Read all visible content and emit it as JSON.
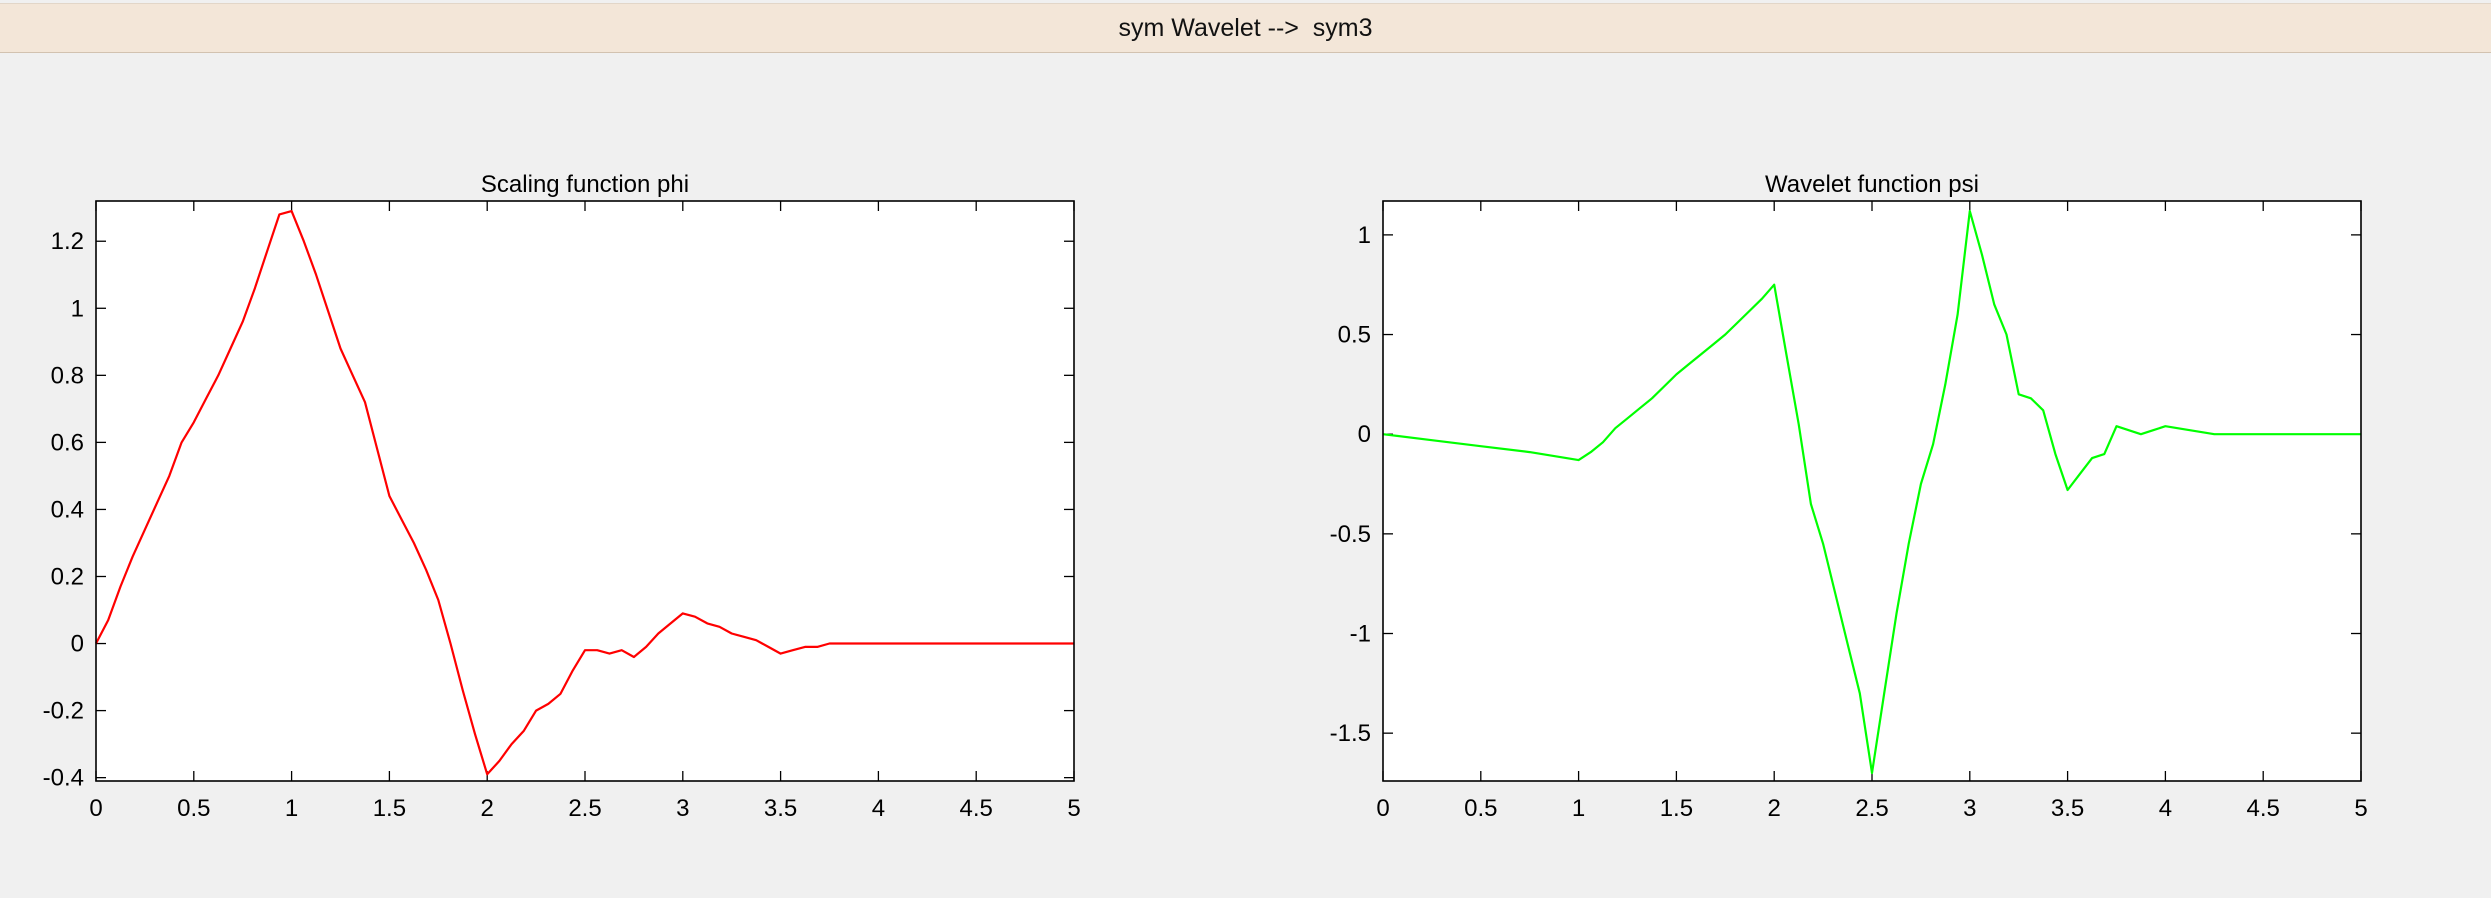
{
  "window": {
    "title": "sym Wavelet -->  sym3"
  },
  "colors": {
    "background": "#f0f0f0",
    "titlebar": "#f3e6d8",
    "phi_line": "#ff0000",
    "psi_line": "#00ff00"
  },
  "chart_data": [
    {
      "type": "line",
      "title": "Scaling function phi",
      "xlabel": "",
      "ylabel": "",
      "xlim": [
        0,
        5
      ],
      "ylim": [
        -0.41,
        1.32
      ],
      "xticks": [
        0,
        0.5,
        1,
        1.5,
        2,
        2.5,
        3,
        3.5,
        4,
        4.5,
        5
      ],
      "xtick_labels": [
        "0",
        "0.5",
        "1",
        "1.5",
        "2",
        "2.5",
        "3",
        "3.5",
        "4",
        "4.5",
        "5"
      ],
      "yticks": [
        -0.4,
        -0.2,
        0,
        0.2,
        0.4,
        0.6,
        0.8,
        1,
        1.2
      ],
      "ytick_labels": [
        "-0.4",
        "-0.2",
        "0",
        "0.2",
        "0.4",
        "0.6",
        "0.8",
        "1",
        "1.2"
      ],
      "grid": false,
      "series": [
        {
          "color": "#ff0000",
          "x": [
            0,
            0.0625,
            0.125,
            0.1875,
            0.25,
            0.3125,
            0.375,
            0.4375,
            0.5,
            0.5625,
            0.625,
            0.6875,
            0.75,
            0.8125,
            0.875,
            0.9375,
            1,
            1.0625,
            1.125,
            1.1875,
            1.25,
            1.3125,
            1.375,
            1.4375,
            1.5,
            1.5625,
            1.625,
            1.6875,
            1.75,
            1.8125,
            1.875,
            1.9375,
            2,
            2.0625,
            2.125,
            2.1875,
            2.25,
            2.3125,
            2.375,
            2.4375,
            2.5,
            2.5625,
            2.625,
            2.6875,
            2.75,
            2.8125,
            2.875,
            2.9375,
            3,
            3.0625,
            3.125,
            3.1875,
            3.25,
            3.3125,
            3.375,
            3.4375,
            3.5,
            3.5625,
            3.625,
            3.6875,
            3.75,
            3.8125,
            3.875,
            3.9375,
            4,
            4.25,
            4.5,
            4.75,
            5
          ],
          "y": [
            0,
            0.07,
            0.17,
            0.26,
            0.34,
            0.42,
            0.5,
            0.6,
            0.66,
            0.73,
            0.8,
            0.88,
            0.96,
            1.06,
            1.17,
            1.28,
            1.29,
            1.2,
            1.1,
            0.99,
            0.88,
            0.8,
            0.72,
            0.58,
            0.44,
            0.37,
            0.3,
            0.22,
            0.13,
            0.0,
            -0.14,
            -0.27,
            -0.39,
            -0.35,
            -0.3,
            -0.26,
            -0.2,
            -0.18,
            -0.15,
            -0.08,
            -0.02,
            -0.02,
            -0.03,
            -0.02,
            -0.04,
            -0.01,
            0.03,
            0.06,
            0.09,
            0.08,
            0.06,
            0.05,
            0.03,
            0.02,
            0.01,
            -0.01,
            -0.03,
            -0.02,
            -0.01,
            -0.01,
            0.0,
            0.0,
            0.0,
            0.0,
            0.0,
            0.0,
            0.0,
            0.0,
            0.0
          ]
        }
      ]
    },
    {
      "type": "line",
      "title": "Wavelet function psi",
      "xlabel": "",
      "ylabel": "",
      "xlim": [
        0,
        5
      ],
      "ylim": [
        -1.74,
        1.17
      ],
      "xticks": [
        0,
        0.5,
        1,
        1.5,
        2,
        2.5,
        3,
        3.5,
        4,
        4.5,
        5
      ],
      "xtick_labels": [
        "0",
        "0.5",
        "1",
        "1.5",
        "2",
        "2.5",
        "3",
        "3.5",
        "4",
        "4.5",
        "5"
      ],
      "yticks": [
        -1.5,
        -1,
        -0.5,
        0,
        0.5,
        1
      ],
      "ytick_labels": [
        "-1.5",
        "-1",
        "-0.5",
        "0",
        "0.5",
        "1"
      ],
      "grid": false,
      "series": [
        {
          "color": "#00ff00",
          "x": [
            0,
            0.25,
            0.5,
            0.75,
            1,
            1.0625,
            1.125,
            1.1875,
            1.25,
            1.3125,
            1.375,
            1.4375,
            1.5,
            1.5625,
            1.625,
            1.6875,
            1.75,
            1.8125,
            1.875,
            1.9375,
            2,
            2.0625,
            2.125,
            2.1875,
            2.25,
            2.3125,
            2.375,
            2.4375,
            2.5,
            2.5625,
            2.625,
            2.6875,
            2.75,
            2.8125,
            2.875,
            2.9375,
            3,
            3.0625,
            3.125,
            3.1875,
            3.25,
            3.3125,
            3.375,
            3.4375,
            3.5,
            3.5625,
            3.625,
            3.6875,
            3.75,
            3.8125,
            3.875,
            3.9375,
            4,
            4.0625,
            4.125,
            4.1875,
            4.25,
            4.5,
            4.75,
            5
          ],
          "y": [
            0.0,
            -0.03,
            -0.06,
            -0.09,
            -0.13,
            -0.09,
            -0.04,
            0.03,
            0.08,
            0.13,
            0.18,
            0.24,
            0.3,
            0.35,
            0.4,
            0.45,
            0.5,
            0.56,
            0.62,
            0.68,
            0.75,
            0.4,
            0.05,
            -0.35,
            -0.55,
            -0.8,
            -1.05,
            -1.3,
            -1.7,
            -1.3,
            -0.9,
            -0.55,
            -0.25,
            -0.05,
            0.25,
            0.6,
            1.12,
            0.9,
            0.65,
            0.5,
            0.2,
            0.18,
            0.12,
            -0.1,
            -0.28,
            -0.2,
            -0.12,
            -0.1,
            0.04,
            0.02,
            0.0,
            0.02,
            0.04,
            0.03,
            0.02,
            0.01,
            0.0,
            0.0,
            0.0,
            0.0
          ]
        }
      ]
    }
  ]
}
